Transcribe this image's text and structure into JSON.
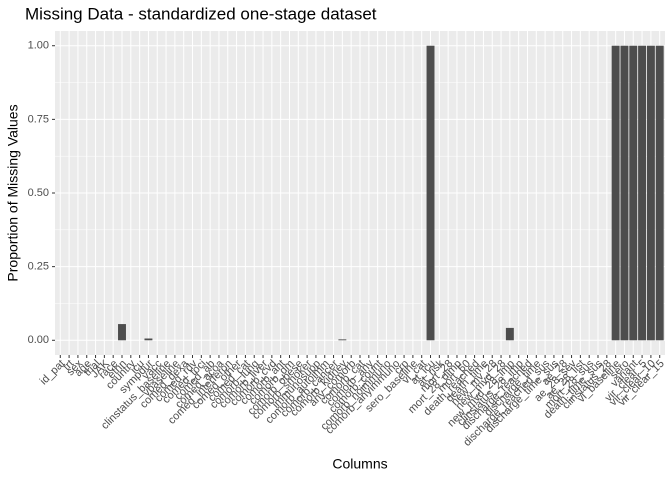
{
  "chart_data": {
    "type": "bar",
    "title": "Missing Data - standardized one-stage dataset",
    "xlabel": "Columns",
    "ylabel": "Proportion of Missing Values",
    "color": "#4d4d4d",
    "grid": true,
    "ylim": [
      -0.05,
      1.05
    ],
    "yticks": [
      {
        "value": 0,
        "label": "0.00"
      },
      {
        "value": 0.25,
        "label": "0.25"
      },
      {
        "value": 0.5,
        "label": "0.50"
      },
      {
        "value": 0.75,
        "label": "0.75"
      },
      {
        "value": 1,
        "label": "1.00"
      }
    ],
    "categories": [
      "id_pat",
      "trt",
      "sex",
      "age",
      "trial",
      "JAK",
      "race",
      "ethn",
      "country",
      "icu",
      "sympdur",
      "vacc",
      "clinstatus_baseline",
      "vbaseline",
      "comed_dexa",
      "comed_rdv",
      "comed_toci",
      "comed_ab",
      "comed_acoa",
      "comed_interferon",
      "comed_other",
      "comed_cat",
      "comorb_lung",
      "comorb_liver",
      "comorb_cvd",
      "comorb_aht",
      "comorb_dm",
      "comorb_obese",
      "comorb_smoker",
      "immunosupp",
      "comorb_autoimm",
      "comorb_cancer",
      "comorb_kidney",
      "any_comorb",
      "comorb_cat",
      "comorb_any",
      "comorb_count",
      "comorb_noimmuno",
      "comorb_anyimmuno",
      "crp",
      "sero_baseline",
      "vl_cat",
      "at_icu",
      "at_risk",
      "mort_28",
      "mort_28_dimp",
      "mort_60",
      "death_reached",
      "death_time",
      "new_mv_28",
      "new_mvd_28",
      "new_mvd_28_imp",
      "clinstatus_28_imp",
      "discharge_reached",
      "discharge_time",
      "discharge_reached_sus",
      "discharge_time_sus",
      "ae_28",
      "ae_28_sev",
      "ae_28_list",
      "mort_28_sus",
      "death_time_sus",
      "clinstatus_28",
      "vl_baseline",
      "sero",
      "variant",
      "vir_clear_5",
      "vir_clear_10",
      "vir_clear_15"
    ],
    "values": [
      0,
      0,
      0,
      0,
      0,
      0,
      0,
      0.055,
      0,
      0,
      0.006,
      0,
      0,
      0,
      0,
      0,
      0,
      0,
      0,
      0,
      0,
      0,
      0,
      0,
      0,
      0,
      0,
      0,
      0,
      0,
      0,
      0,
      0.003,
      0,
      0,
      0,
      0,
      0,
      0,
      0,
      0,
      0,
      1,
      0,
      0,
      0,
      0,
      0,
      0,
      0,
      0,
      0.042,
      0,
      0,
      0,
      0,
      0,
      0,
      0,
      0,
      0,
      0,
      0,
      1,
      1,
      1,
      1,
      1,
      1
    ]
  }
}
